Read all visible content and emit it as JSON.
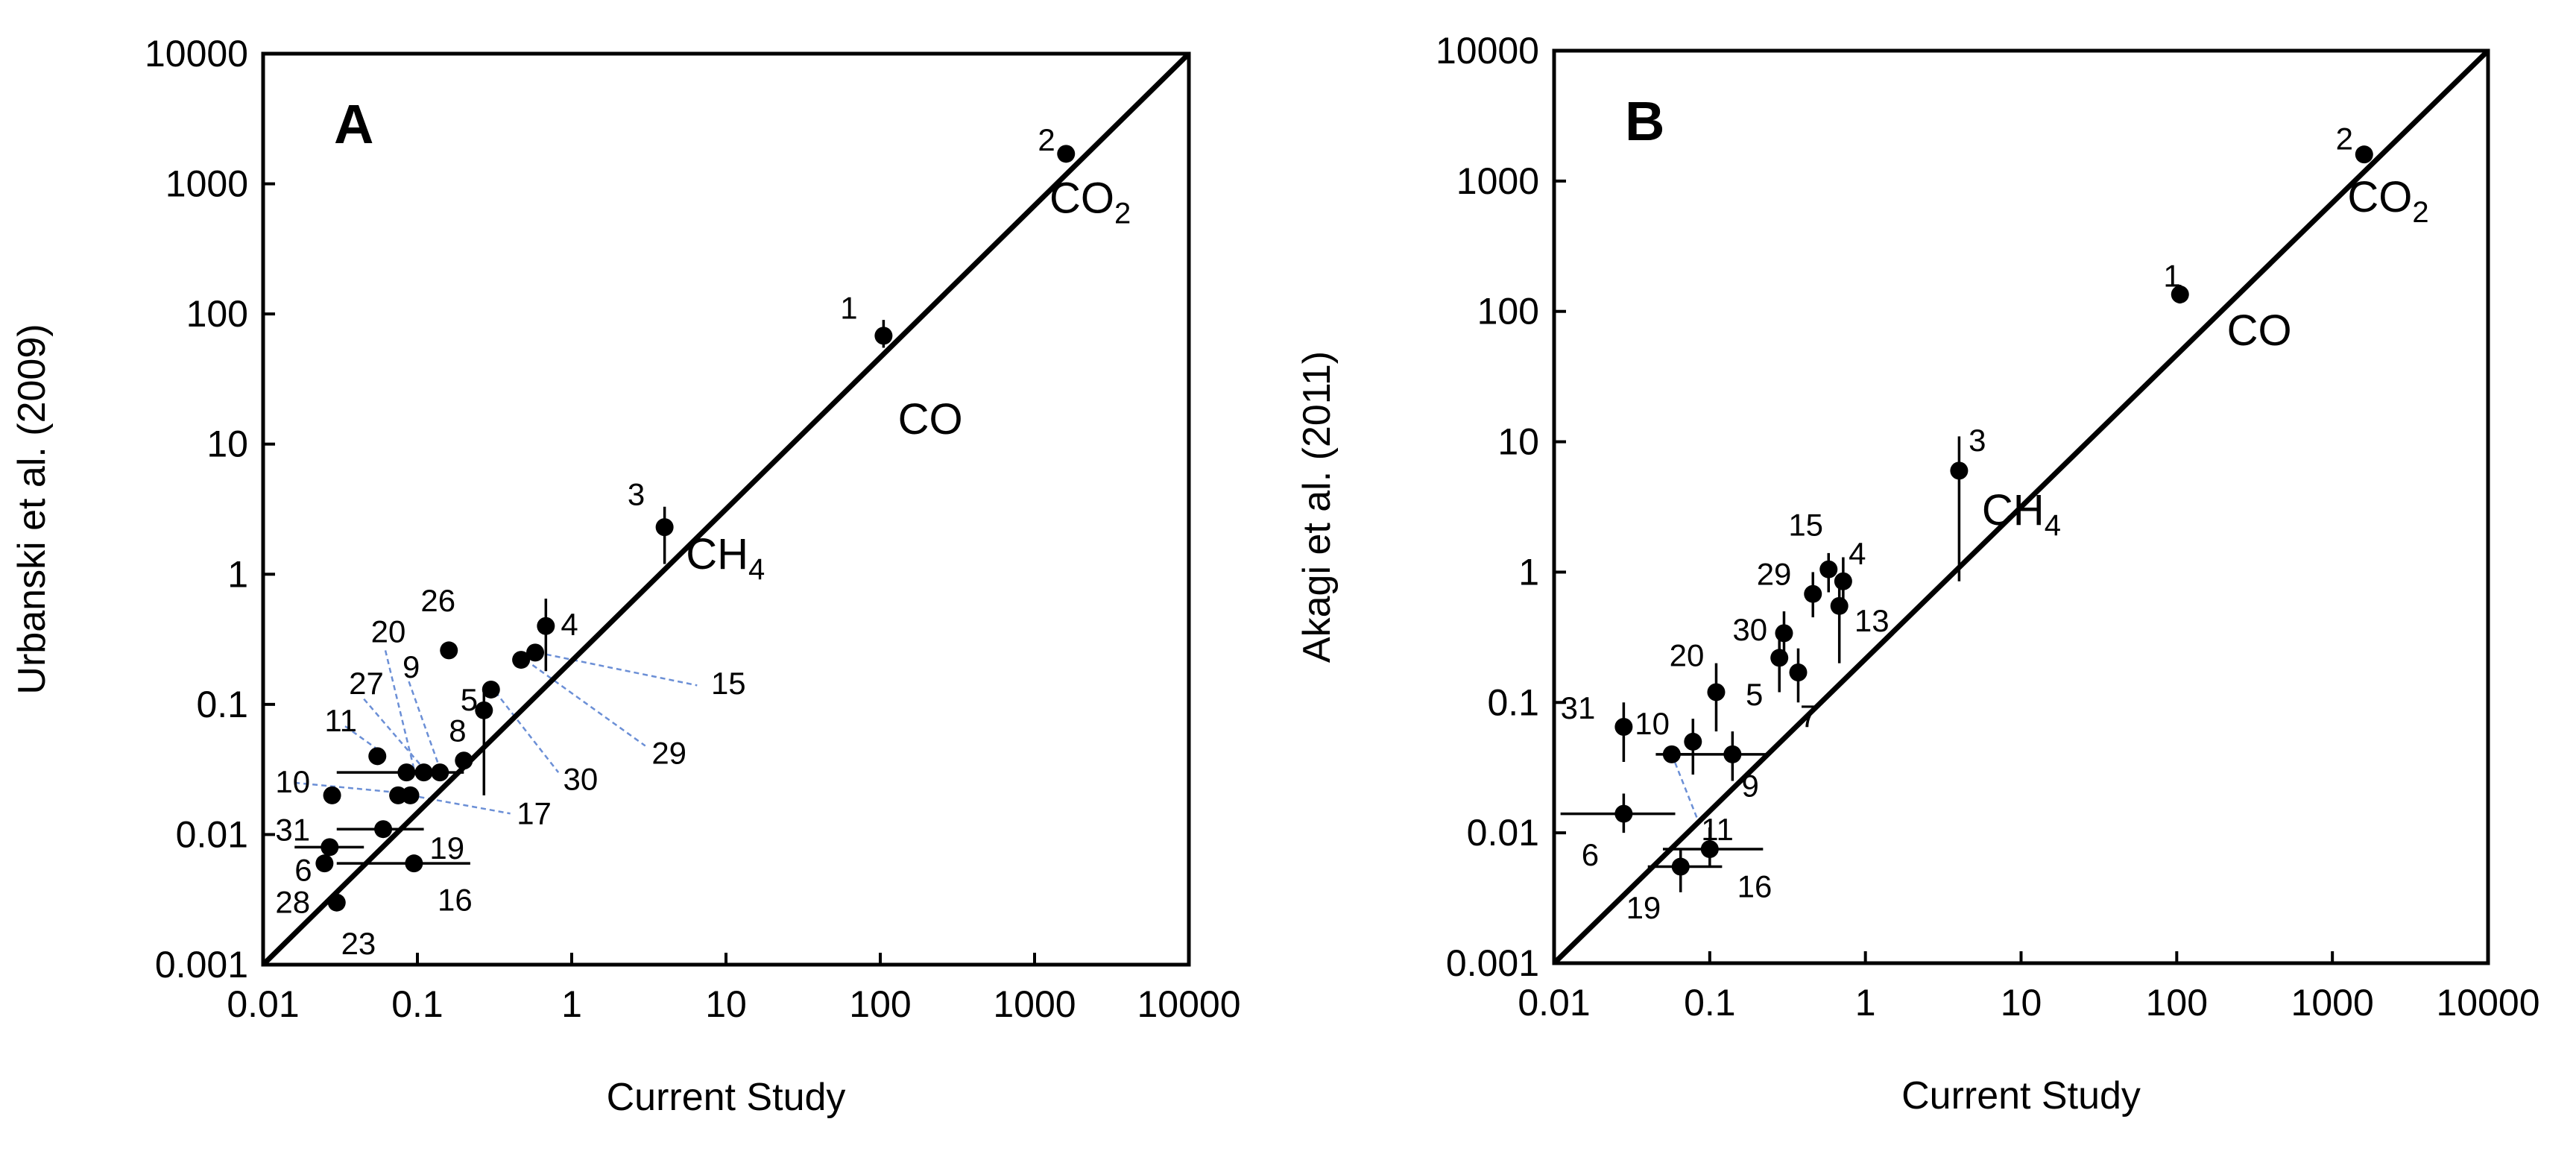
{
  "chart_data": [
    {
      "type": "scatter",
      "panel_label": "A",
      "title": "",
      "xlabel": "Current Study",
      "ylabel": "Urbanski et al. (2009)",
      "xscale": "log",
      "yscale": "log",
      "xlim": [
        0.01,
        10000
      ],
      "ylim": [
        0.001,
        10000
      ],
      "xticks": [
        "0.01",
        "0.1",
        "1",
        "10",
        "100",
        "1000",
        "10000"
      ],
      "yticks": [
        "0.001",
        "0.01",
        "0.1",
        "1",
        "10",
        "100",
        "1000",
        "10000"
      ],
      "reference_line": "1:1",
      "grid": false,
      "points": [
        {
          "id": "2",
          "x": 1600,
          "y": 1700
        },
        {
          "id": "1",
          "x": 105,
          "y": 68,
          "yerr": [
            55,
            90
          ]
        },
        {
          "id": "3",
          "x": 4.0,
          "y": 2.3,
          "yerr": [
            1.2,
            3.3
          ]
        },
        {
          "id": "4",
          "x": 0.68,
          "y": 0.4,
          "yerr": [
            0.18,
            0.65
          ]
        },
        {
          "id": "15",
          "x": 0.58,
          "y": 0.25
        },
        {
          "id": "29",
          "x": 0.47,
          "y": 0.22
        },
        {
          "id": "30",
          "x": 0.3,
          "y": 0.13
        },
        {
          "id": "5",
          "x": 0.27,
          "y": 0.09,
          "yerr": [
            0.02,
            0.13
          ]
        },
        {
          "id": "26",
          "x": 0.16,
          "y": 0.26
        },
        {
          "id": "8",
          "x": 0.2,
          "y": 0.037
        },
        {
          "id": "9",
          "x": 0.14,
          "y": 0.03
        },
        {
          "id": "20",
          "x": 0.11,
          "y": 0.03
        },
        {
          "id": "27",
          "x": 0.085,
          "y": 0.03,
          "xerr": [
            0.03,
            0.2
          ]
        },
        {
          "id": "11",
          "x": 0.055,
          "y": 0.04
        },
        {
          "id": "17",
          "x": 0.09,
          "y": 0.02
        },
        {
          "id": "10",
          "x": 0.075,
          "y": 0.02
        },
        {
          "id": "31",
          "x": 0.028,
          "y": 0.02
        },
        {
          "id": "19",
          "x": 0.06,
          "y": 0.011,
          "xerr": [
            0.03,
            0.11
          ]
        },
        {
          "id": "6",
          "x": 0.027,
          "y": 0.008,
          "xerr": [
            0.016,
            0.045
          ]
        },
        {
          "id": "16",
          "x": 0.095,
          "y": 0.006,
          "xerr": [
            0.03,
            0.22
          ]
        },
        {
          "id": "28",
          "x": 0.025,
          "y": 0.006
        },
        {
          "id": "23",
          "x": 0.03,
          "y": 0.003
        }
      ],
      "annotations": [
        {
          "text": "CO",
          "sub": "2",
          "x": 1250,
          "y": 600
        },
        {
          "text": "CO",
          "sub": "",
          "x": 130,
          "y": 12
        },
        {
          "text": "CH",
          "sub": "4",
          "x": 5.5,
          "y": 1.1
        }
      ],
      "point_labels": [
        {
          "text": "2",
          "x": 1050,
          "y": 1800
        },
        {
          "text": "1",
          "x": 55,
          "y": 92
        },
        {
          "text": "3",
          "x": 2.3,
          "y": 3.4
        },
        {
          "text": "4",
          "x": 0.85,
          "y": 0.34
        },
        {
          "text": "15",
          "x": 8.0,
          "y": 0.12
        },
        {
          "text": "29",
          "x": 3.3,
          "y": 0.035
        },
        {
          "text": "30",
          "x": 0.88,
          "y": 0.022
        },
        {
          "text": "5",
          "x": 0.19,
          "y": 0.09
        },
        {
          "text": "26",
          "x": 0.105,
          "y": 0.52
        },
        {
          "text": "20",
          "x": 0.05,
          "y": 0.3
        },
        {
          "text": "9",
          "x": 0.08,
          "y": 0.16
        },
        {
          "text": "27",
          "x": 0.036,
          "y": 0.12
        },
        {
          "text": "8",
          "x": 0.16,
          "y": 0.052
        },
        {
          "text": "11",
          "x": 0.025,
          "y": 0.062
        },
        {
          "text": "17",
          "x": 0.44,
          "y": 0.012
        },
        {
          "text": "10",
          "x": 0.012,
          "y": 0.021
        },
        {
          "text": "31",
          "x": 0.012,
          "y": 0.009
        },
        {
          "text": "19",
          "x": 0.12,
          "y": 0.0065
        },
        {
          "text": "6",
          "x": 0.016,
          "y": 0.0044
        },
        {
          "text": "16",
          "x": 0.135,
          "y": 0.0026
        },
        {
          "text": "28",
          "x": 0.012,
          "y": 0.0025
        },
        {
          "text": "23",
          "x": 0.032,
          "y": 0.0012
        }
      ],
      "leader_lines": [
        {
          "from": [
            0.6,
            0.25
          ],
          "to": [
            6.5,
            0.14
          ]
        },
        {
          "from": [
            0.5,
            0.22
          ],
          "to": [
            3.0,
            0.048
          ]
        },
        {
          "from": [
            0.32,
            0.125
          ],
          "to": [
            0.82,
            0.03
          ]
        },
        {
          "from": [
            0.062,
            0.26
          ],
          "to": [
            0.095,
            0.032
          ]
        },
        {
          "from": [
            0.088,
            0.15
          ],
          "to": [
            0.14,
            0.032
          ]
        },
        {
          "from": [
            0.045,
            0.11
          ],
          "to": [
            0.11,
            0.032
          ]
        },
        {
          "from": [
            0.034,
            0.068
          ],
          "to": [
            0.06,
            0.042
          ]
        },
        {
          "from": [
            0.09,
            0.02
          ],
          "to": [
            0.4,
            0.0145
          ]
        },
        {
          "from": [
            0.016,
            0.025
          ],
          "to": [
            0.075,
            0.021
          ]
        }
      ]
    },
    {
      "type": "scatter",
      "panel_label": "B",
      "title": "",
      "xlabel": "Current Study",
      "ylabel": "Akagi et al. (2011)",
      "xscale": "log",
      "yscale": "log",
      "xlim": [
        0.01,
        10000
      ],
      "ylim": [
        0.001,
        10000
      ],
      "xticks": [
        "0.01",
        "0.1",
        "1",
        "10",
        "100",
        "1000",
        "10000"
      ],
      "yticks": [
        "0.001",
        "0.01",
        "0.1",
        "1",
        "10",
        "100",
        "1000",
        "10000"
      ],
      "reference_line": "1:1",
      "grid": false,
      "points": [
        {
          "id": "2",
          "x": 1600,
          "y": 1600
        },
        {
          "id": "1",
          "x": 105,
          "y": 135,
          "yerr": [
            115,
            160
          ]
        },
        {
          "id": "3",
          "x": 4.0,
          "y": 6.0,
          "yerr": [
            0.85,
            11
          ]
        },
        {
          "id": "15",
          "x": 0.58,
          "y": 1.05,
          "yerr": [
            0.7,
            1.4
          ]
        },
        {
          "id": "4",
          "x": 0.72,
          "y": 0.85,
          "yerr": [
            0.55,
            1.3
          ]
        },
        {
          "id": "29",
          "x": 0.46,
          "y": 0.68,
          "yerr": [
            0.45,
            1.0
          ]
        },
        {
          "id": "13",
          "x": 0.68,
          "y": 0.55,
          "yerr": [
            0.2,
            0.9
          ]
        },
        {
          "id": "30",
          "x": 0.3,
          "y": 0.34,
          "yerr": [
            0.22,
            0.5
          ]
        },
        {
          "id": "5",
          "x": 0.28,
          "y": 0.22,
          "yerr": [
            0.12,
            0.34
          ]
        },
        {
          "id": "7",
          "x": 0.37,
          "y": 0.17,
          "yerr": [
            0.1,
            0.26
          ]
        },
        {
          "id": "20",
          "x": 0.11,
          "y": 0.12,
          "yerr": [
            0.06,
            0.2
          ]
        },
        {
          "id": "31",
          "x": 0.028,
          "y": 0.065,
          "yerr": [
            0.035,
            0.1
          ]
        },
        {
          "id": "10",
          "x": 0.078,
          "y": 0.05,
          "yerr": [
            0.028,
            0.075
          ]
        },
        {
          "id": "11",
          "x": 0.057,
          "y": 0.04,
          "xerr": [
            0.045,
            0.075
          ]
        },
        {
          "id": "9",
          "x": 0.14,
          "y": 0.04,
          "xerr": [
            0.06,
            0.23
          ],
          "yerr": [
            0.025,
            0.06
          ]
        },
        {
          "id": "6",
          "x": 0.028,
          "y": 0.014,
          "xerr": [
            0.011,
            0.06
          ],
          "yerr": [
            0.01,
            0.02
          ]
        },
        {
          "id": "16",
          "x": 0.1,
          "y": 0.0075,
          "xerr": [
            0.05,
            0.22
          ],
          "yerr": [
            0.0055,
            0.011
          ]
        },
        {
          "id": "19",
          "x": 0.065,
          "y": 0.0055,
          "xerr": [
            0.04,
            0.12
          ],
          "yerr": [
            0.0035,
            0.0075
          ]
        }
      ],
      "annotations": [
        {
          "text": "CO",
          "sub": "2",
          "x": 1250,
          "y": 580
        },
        {
          "text": "CO",
          "sub": "",
          "x": 210,
          "y": 55
        },
        {
          "text": "CH",
          "sub": "4",
          "x": 5.6,
          "y": 2.3
        }
      ],
      "point_labels": [
        {
          "text": "2",
          "x": 1050,
          "y": 1750
        },
        {
          "text": "1",
          "x": 82,
          "y": 155
        },
        {
          "text": "3",
          "x": 4.6,
          "y": 8.5
        },
        {
          "text": "15",
          "x": 0.32,
          "y": 1.9
        },
        {
          "text": "4",
          "x": 0.78,
          "y": 1.15
        },
        {
          "text": "29",
          "x": 0.2,
          "y": 0.8
        },
        {
          "text": "13",
          "x": 0.85,
          "y": 0.35
        },
        {
          "text": "30",
          "x": 0.14,
          "y": 0.3
        },
        {
          "text": "5",
          "x": 0.17,
          "y": 0.095
        },
        {
          "text": "7",
          "x": 0.38,
          "y": 0.065
        },
        {
          "text": "20",
          "x": 0.055,
          "y": 0.19
        },
        {
          "text": "31",
          "x": 0.011,
          "y": 0.075
        },
        {
          "text": "10",
          "x": 0.033,
          "y": 0.057
        },
        {
          "text": "9",
          "x": 0.16,
          "y": 0.019
        },
        {
          "text": "11",
          "x": 0.088,
          "y": 0.0088
        },
        {
          "text": "6",
          "x": 0.015,
          "y": 0.0056
        },
        {
          "text": "16",
          "x": 0.15,
          "y": 0.0032
        },
        {
          "text": "19",
          "x": 0.029,
          "y": 0.0022
        }
      ],
      "leader_lines": [
        {
          "from": [
            0.057,
            0.04
          ],
          "to": [
            0.085,
            0.012
          ]
        }
      ]
    }
  ]
}
